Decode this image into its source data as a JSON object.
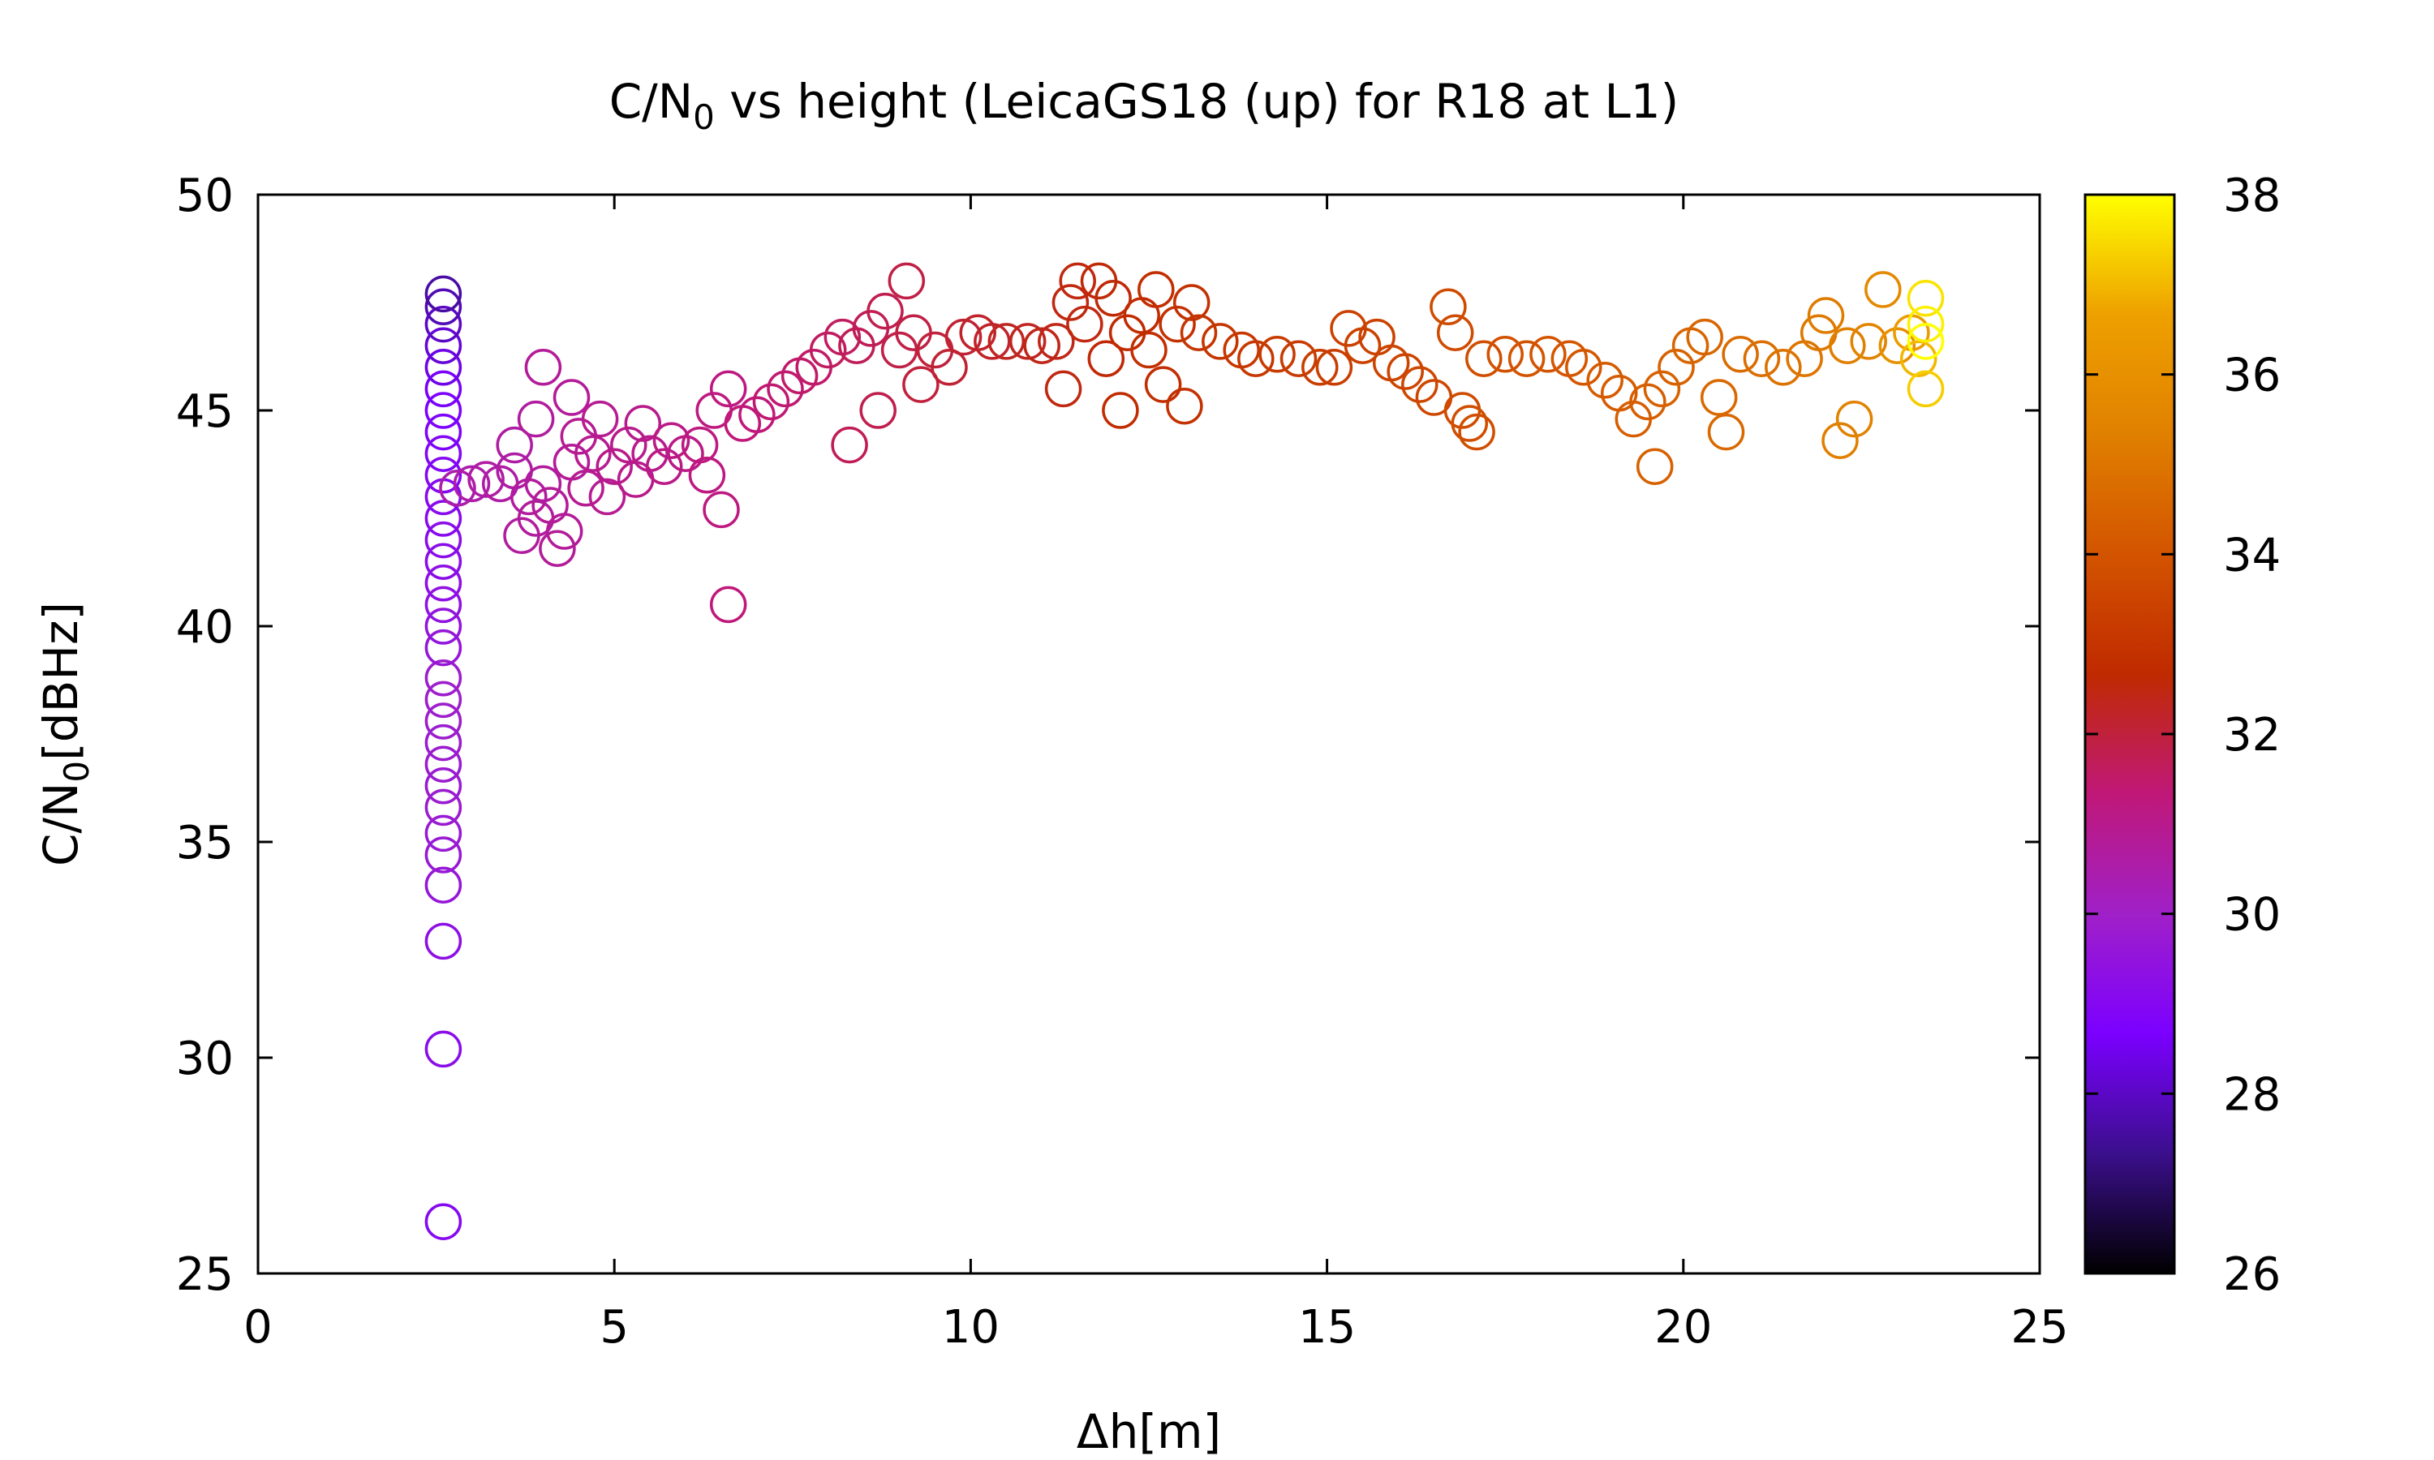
{
  "chart_data": {
    "type": "scatter",
    "title": {
      "prefix": "C/N",
      "sub": "0",
      "suffix": " vs height (LeicaGS18 (up) for R18 at L1)"
    },
    "xlabel": "Δh[m]",
    "ylabel": {
      "prefix": "C/N",
      "sub": "0",
      "suffix": "[dBHz]"
    },
    "xlim": [
      0,
      25
    ],
    "ylim": [
      25,
      50
    ],
    "xticks": [
      0,
      5,
      10,
      15,
      20,
      25
    ],
    "yticks": [
      25,
      30,
      35,
      40,
      45,
      50
    ],
    "xtick_labels": [
      "0",
      "5",
      "10",
      "15",
      "20",
      "25"
    ],
    "ytick_labels": [
      "25",
      "30",
      "35",
      "40",
      "45",
      "50"
    ],
    "colorbar": {
      "range": [
        26,
        38
      ],
      "ticks": [
        26,
        28,
        30,
        32,
        34,
        36,
        38
      ],
      "tick_labels": [
        "26",
        "28",
        "30",
        "32",
        "34",
        "36",
        "38"
      ],
      "stops": [
        "#000000",
        "#3b0f8c",
        "#7b00ff",
        "#a020c8",
        "#c01878",
        "#c02a00",
        "#d35400",
        "#e08000",
        "#eea000",
        "#ffff00"
      ]
    },
    "marker": "open-circle",
    "points": [
      [
        2.6,
        26.2,
        29.0
      ],
      [
        2.6,
        30.2,
        29.2
      ],
      [
        2.6,
        32.7,
        29.3
      ],
      [
        2.6,
        34.0,
        29.6
      ],
      [
        2.6,
        34.7,
        29.7
      ],
      [
        2.6,
        35.2,
        29.7
      ],
      [
        2.6,
        35.8,
        29.8
      ],
      [
        2.6,
        36.3,
        29.8
      ],
      [
        2.6,
        36.8,
        29.8
      ],
      [
        2.6,
        37.3,
        29.8
      ],
      [
        2.6,
        37.8,
        29.9
      ],
      [
        2.6,
        38.3,
        29.9
      ],
      [
        2.6,
        38.8,
        29.9
      ],
      [
        2.6,
        39.5,
        29.6
      ],
      [
        2.6,
        40.0,
        29.5
      ],
      [
        2.6,
        40.5,
        29.4
      ],
      [
        2.6,
        41.0,
        29.3
      ],
      [
        2.6,
        41.5,
        29.2
      ],
      [
        2.6,
        42.0,
        29.2
      ],
      [
        2.6,
        42.5,
        29.1
      ],
      [
        2.6,
        43.0,
        29.1
      ],
      [
        2.6,
        43.5,
        29.0
      ],
      [
        2.6,
        44.0,
        28.9
      ],
      [
        2.6,
        44.5,
        28.8
      ],
      [
        2.6,
        45.0,
        28.7
      ],
      [
        2.6,
        45.5,
        28.6
      ],
      [
        2.6,
        46.0,
        28.4
      ],
      [
        2.6,
        46.5,
        28.2
      ],
      [
        2.6,
        47.0,
        28.0
      ],
      [
        2.6,
        47.4,
        27.8
      ],
      [
        2.6,
        47.7,
        27.6
      ],
      [
        2.8,
        43.2,
        30.5
      ],
      [
        3.0,
        43.3,
        30.5
      ],
      [
        3.2,
        43.4,
        30.6
      ],
      [
        3.4,
        43.3,
        30.6
      ],
      [
        3.6,
        43.6,
        30.6
      ],
      [
        3.6,
        44.2,
        30.6
      ],
      [
        3.7,
        42.1,
        30.7
      ],
      [
        3.8,
        43.0,
        30.7
      ],
      [
        3.9,
        44.8,
        30.7
      ],
      [
        3.9,
        42.5,
        30.7
      ],
      [
        4.0,
        46.0,
        30.8
      ],
      [
        4.0,
        43.3,
        30.7
      ],
      [
        4.1,
        42.8,
        30.8
      ],
      [
        4.2,
        41.8,
        30.8
      ],
      [
        4.3,
        42.2,
        30.8
      ],
      [
        4.4,
        45.3,
        30.8
      ],
      [
        4.4,
        43.8,
        30.8
      ],
      [
        4.5,
        44.4,
        30.9
      ],
      [
        4.6,
        43.2,
        30.9
      ],
      [
        4.7,
        44.0,
        30.9
      ],
      [
        4.8,
        44.8,
        30.9
      ],
      [
        4.9,
        43.0,
        30.9
      ],
      [
        5.0,
        43.7,
        31.0
      ],
      [
        5.2,
        44.2,
        31.0
      ],
      [
        5.3,
        43.4,
        31.0
      ],
      [
        5.4,
        44.7,
        31.0
      ],
      [
        5.5,
        44.0,
        31.0
      ],
      [
        5.7,
        43.7,
        31.1
      ],
      [
        5.8,
        44.3,
        31.1
      ],
      [
        6.0,
        44.0,
        31.1
      ],
      [
        6.2,
        44.2,
        31.2
      ],
      [
        6.3,
        43.5,
        31.2
      ],
      [
        6.4,
        45.0,
        31.2
      ],
      [
        6.5,
        42.7,
        31.2
      ],
      [
        6.6,
        45.5,
        31.2
      ],
      [
        6.6,
        40.5,
        31.3
      ],
      [
        6.8,
        44.7,
        31.3
      ],
      [
        7.0,
        44.9,
        31.3
      ],
      [
        7.2,
        45.2,
        31.4
      ],
      [
        7.4,
        45.5,
        31.4
      ],
      [
        7.6,
        45.8,
        31.5
      ],
      [
        7.8,
        46.0,
        31.5
      ],
      [
        8.0,
        46.4,
        31.6
      ],
      [
        8.2,
        46.7,
        31.6
      ],
      [
        8.3,
        44.2,
        31.7
      ],
      [
        8.4,
        46.5,
        31.7
      ],
      [
        8.6,
        46.9,
        31.7
      ],
      [
        8.7,
        45.0,
        31.8
      ],
      [
        8.8,
        47.3,
        31.8
      ],
      [
        9.0,
        46.4,
        31.9
      ],
      [
        9.1,
        48.0,
        31.9
      ],
      [
        9.2,
        46.8,
        31.9
      ],
      [
        9.3,
        45.6,
        32.0
      ],
      [
        9.5,
        46.4,
        32.0
      ],
      [
        9.7,
        46.0,
        32.1
      ],
      [
        9.9,
        46.7,
        32.1
      ],
      [
        10.1,
        46.8,
        32.2
      ],
      [
        10.3,
        46.6,
        32.2
      ],
      [
        10.5,
        46.6,
        32.3
      ],
      [
        10.8,
        46.6,
        32.3
      ],
      [
        11.0,
        46.5,
        32.4
      ],
      [
        11.2,
        46.6,
        32.4
      ],
      [
        11.3,
        45.5,
        32.5
      ],
      [
        11.4,
        47.5,
        32.5
      ],
      [
        11.5,
        48.0,
        32.5
      ],
      [
        11.6,
        47.0,
        32.5
      ],
      [
        11.8,
        48.0,
        32.6
      ],
      [
        11.9,
        46.2,
        32.6
      ],
      [
        12.0,
        47.6,
        32.6
      ],
      [
        12.1,
        45.0,
        32.7
      ],
      [
        12.2,
        46.8,
        32.7
      ],
      [
        12.4,
        47.2,
        32.7
      ],
      [
        12.5,
        46.4,
        32.8
      ],
      [
        12.6,
        47.8,
        32.8
      ],
      [
        12.7,
        45.6,
        32.8
      ],
      [
        12.9,
        47.0,
        32.9
      ],
      [
        13.0,
        45.1,
        32.9
      ],
      [
        13.1,
        47.5,
        32.9
      ],
      [
        13.2,
        46.8,
        33.0
      ],
      [
        13.5,
        46.6,
        33.0
      ],
      [
        13.8,
        46.4,
        33.1
      ],
      [
        14.0,
        46.2,
        33.1
      ],
      [
        14.3,
        46.3,
        33.2
      ],
      [
        14.6,
        46.2,
        33.2
      ],
      [
        14.9,
        46.0,
        33.3
      ],
      [
        15.1,
        46.0,
        33.3
      ],
      [
        15.3,
        46.9,
        33.4
      ],
      [
        15.5,
        46.5,
        33.4
      ],
      [
        15.7,
        46.7,
        33.4
      ],
      [
        15.9,
        46.1,
        33.5
      ],
      [
        16.1,
        45.9,
        33.5
      ],
      [
        16.3,
        45.6,
        33.6
      ],
      [
        16.5,
        45.3,
        33.6
      ],
      [
        16.7,
        47.4,
        33.7
      ],
      [
        16.8,
        46.8,
        33.7
      ],
      [
        16.9,
        45.0,
        33.7
      ],
      [
        17.0,
        44.7,
        33.8
      ],
      [
        17.1,
        44.5,
        33.8
      ],
      [
        17.2,
        46.2,
        33.8
      ],
      [
        17.5,
        46.3,
        33.9
      ],
      [
        17.8,
        46.2,
        34.0
      ],
      [
        18.1,
        46.3,
        34.0
      ],
      [
        18.4,
        46.2,
        34.1
      ],
      [
        18.6,
        46.0,
        34.1
      ],
      [
        18.9,
        45.7,
        34.2
      ],
      [
        19.1,
        45.4,
        34.2
      ],
      [
        19.3,
        44.8,
        34.3
      ],
      [
        19.5,
        45.2,
        34.3
      ],
      [
        19.6,
        43.7,
        34.4
      ],
      [
        19.7,
        45.5,
        34.4
      ],
      [
        19.9,
        46.0,
        34.4
      ],
      [
        20.1,
        46.5,
        34.5
      ],
      [
        20.3,
        46.7,
        34.5
      ],
      [
        20.5,
        45.3,
        34.6
      ],
      [
        20.6,
        44.5,
        34.6
      ],
      [
        20.8,
        46.3,
        34.7
      ],
      [
        21.1,
        46.2,
        34.8
      ],
      [
        21.4,
        46.0,
        34.9
      ],
      [
        21.7,
        46.2,
        35.0
      ],
      [
        21.9,
        46.8,
        35.1
      ],
      [
        22.0,
        47.2,
        35.2
      ],
      [
        22.2,
        44.3,
        35.3
      ],
      [
        22.3,
        46.5,
        35.3
      ],
      [
        22.4,
        44.8,
        35.4
      ],
      [
        22.6,
        46.6,
        35.5
      ],
      [
        22.8,
        47.8,
        35.7
      ],
      [
        23.0,
        46.5,
        36.0
      ],
      [
        23.2,
        46.8,
        36.5
      ],
      [
        23.3,
        46.2,
        37.0
      ],
      [
        23.4,
        45.5,
        37.3
      ],
      [
        23.4,
        47.6,
        37.6
      ],
      [
        23.4,
        47.0,
        37.8
      ],
      [
        23.4,
        46.6,
        38.0
      ]
    ]
  }
}
